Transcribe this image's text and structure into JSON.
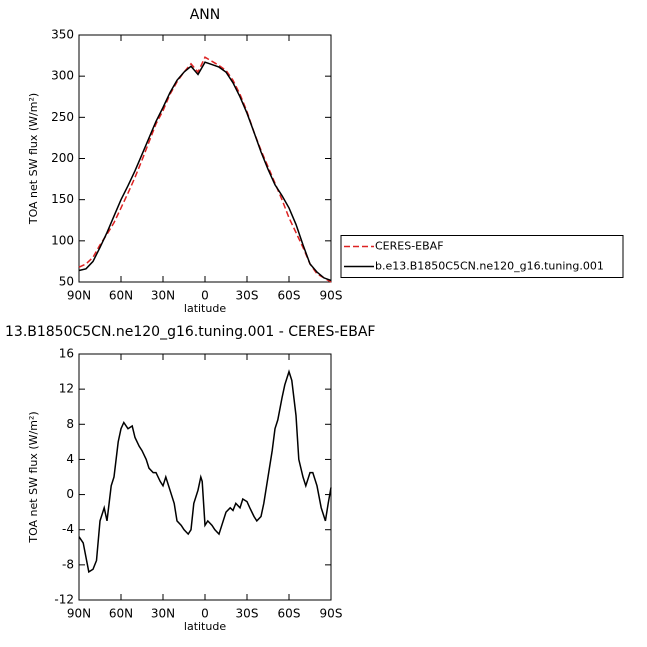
{
  "chart_data": [
    {
      "type": "line",
      "title": "ANN",
      "xlabel": "latitude",
      "ylabel": "TOA net SW flux (W/m²)",
      "x": [
        90,
        85,
        80,
        75,
        70,
        65,
        60,
        55,
        50,
        45,
        40,
        35,
        30,
        25,
        20,
        15,
        10,
        5,
        0,
        -5,
        -10,
        -15,
        -20,
        -25,
        -30,
        -35,
        -40,
        -45,
        -50,
        -55,
        -60,
        -65,
        -70,
        -75,
        -80,
        -85,
        -90
      ],
      "series": [
        {
          "name": "CERES-EBAF",
          "color": "#dd2222",
          "dash": true,
          "values": [
            68,
            72,
            80,
            95,
            108,
            122,
            140,
            158,
            177,
            198,
            220,
            242,
            258,
            278,
            293,
            305,
            315,
            305,
            323,
            318,
            313,
            307,
            295,
            278,
            257,
            232,
            210,
            190,
            170,
            150,
            128,
            110,
            92,
            72,
            60,
            55,
            50
          ]
        },
        {
          "name": "b.e13.B1850C5CN.ne120_g16.tuning.001",
          "color": "#000000",
          "dash": false,
          "values": [
            64,
            66,
            75,
            92,
            110,
            130,
            150,
            167,
            185,
            205,
            225,
            245,
            262,
            280,
            295,
            305,
            312,
            302,
            317,
            314,
            311,
            305,
            292,
            275,
            255,
            232,
            208,
            187,
            168,
            155,
            140,
            120,
            95,
            72,
            62,
            55,
            52
          ]
        }
      ],
      "xlim": [
        90,
        -90
      ],
      "ylim": [
        50,
        350
      ],
      "xticks": [
        {
          "value": 90,
          "label": "90N"
        },
        {
          "value": 60,
          "label": "60N"
        },
        {
          "value": 30,
          "label": "30N"
        },
        0,
        {
          "value": -30,
          "label": "30S"
        },
        {
          "value": -60,
          "label": "60S"
        },
        {
          "value": -90,
          "label": "90S"
        }
      ],
      "yticks": [
        50,
        100,
        150,
        200,
        250,
        300,
        350
      ],
      "legend": "right"
    },
    {
      "type": "line",
      "title": "13.B1850C5CN.ne120_g16.tuning.001 - CERES-EBAF",
      "xlabel": "latitude",
      "ylabel": "TOA net SW flux (W/m²)",
      "x": [
        90,
        87,
        83,
        80,
        77.5,
        75,
        72,
        70,
        67,
        65,
        62,
        60,
        58,
        55,
        52,
        50,
        47,
        45,
        42,
        40,
        37,
        35,
        32,
        30,
        28,
        25,
        22,
        20,
        17,
        15,
        12,
        10,
        8,
        5,
        3,
        2,
        0,
        -2,
        -5,
        -7,
        -10,
        -12,
        -15,
        -18,
        -20,
        -22,
        -25,
        -27,
        -30,
        -32,
        -35,
        -37,
        -40,
        -42,
        -45,
        -48,
        -50,
        -52,
        -55,
        -57,
        -60,
        -62,
        -65,
        -67,
        -70,
        -72,
        -75,
        -77,
        -80,
        -83,
        -86,
        -88,
        -90
      ],
      "series": [
        {
          "color": "#000000",
          "dash": false,
          "values": [
            -4.8,
            -5.5,
            -8.8,
            -8.5,
            -7.5,
            -3,
            -1.5,
            -3,
            1,
            2,
            6,
            7.5,
            8.2,
            7.5,
            7.8,
            6.5,
            5.5,
            5,
            4,
            3,
            2.5,
            2.5,
            1.5,
            1,
            2,
            0.5,
            -1,
            -3,
            -3.5,
            -4,
            -4.5,
            -4,
            -1,
            0.5,
            2,
            1.5,
            -3.5,
            -3,
            -3.5,
            -4,
            -4.5,
            -3.5,
            -2,
            -1.5,
            -1.8,
            -1,
            -1.5,
            -0.5,
            -0.8,
            -1.5,
            -2.5,
            -3,
            -2.5,
            -1,
            2,
            5,
            7.5,
            8.5,
            11,
            12.5,
            14,
            13,
            9,
            4,
            2,
            1,
            2.5,
            2.5,
            1,
            -1.5,
            -3,
            -1,
            0.8
          ]
        }
      ],
      "xlim": [
        90,
        -90
      ],
      "ylim": [
        -12,
        16
      ],
      "xticks": [
        {
          "value": 90,
          "label": "90N"
        },
        {
          "value": 60,
          "label": "60N"
        },
        {
          "value": 30,
          "label": "30N"
        },
        0,
        {
          "value": -30,
          "label": "30S"
        },
        {
          "value": -60,
          "label": "60S"
        },
        {
          "value": -90,
          "label": "90S"
        }
      ],
      "yticks": [
        -12,
        -8,
        -4,
        0,
        4,
        8,
        12,
        16
      ]
    }
  ]
}
